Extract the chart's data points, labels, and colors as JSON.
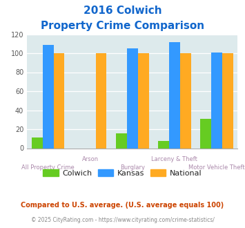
{
  "title_line1": "2016 Colwich",
  "title_line2": "Property Crime Comparison",
  "groups": [
    "All Property Crime",
    "Arson",
    "Burglary",
    "Larceny & Theft",
    "Motor Vehicle Theft"
  ],
  "colwich": [
    11,
    0,
    16,
    8,
    31
  ],
  "kansas": [
    109,
    0,
    105,
    112,
    101
  ],
  "national": [
    100,
    100,
    100,
    100,
    100
  ],
  "colwich_color": "#66cc22",
  "kansas_color": "#3399ff",
  "national_color": "#ffaa22",
  "title_color": "#1166cc",
  "xlabel_color_top": "#aa88aa",
  "xlabel_color_bot": "#aa88aa",
  "ylim": [
    0,
    120
  ],
  "yticks": [
    0,
    20,
    40,
    60,
    80,
    100,
    120
  ],
  "bg_color": "#ddeaec",
  "footer_text": "Compared to U.S. average. (U.S. average equals 100)",
  "credit_text": "© 2025 CityRating.com - https://www.cityrating.com/crime-statistics/",
  "footer_color": "#cc4400",
  "credit_color": "#888888",
  "legend_labels": [
    "Colwich",
    "Kansas",
    "National"
  ],
  "row1_groups": [
    1,
    3
  ],
  "row2_groups": [
    0,
    2,
    4
  ]
}
